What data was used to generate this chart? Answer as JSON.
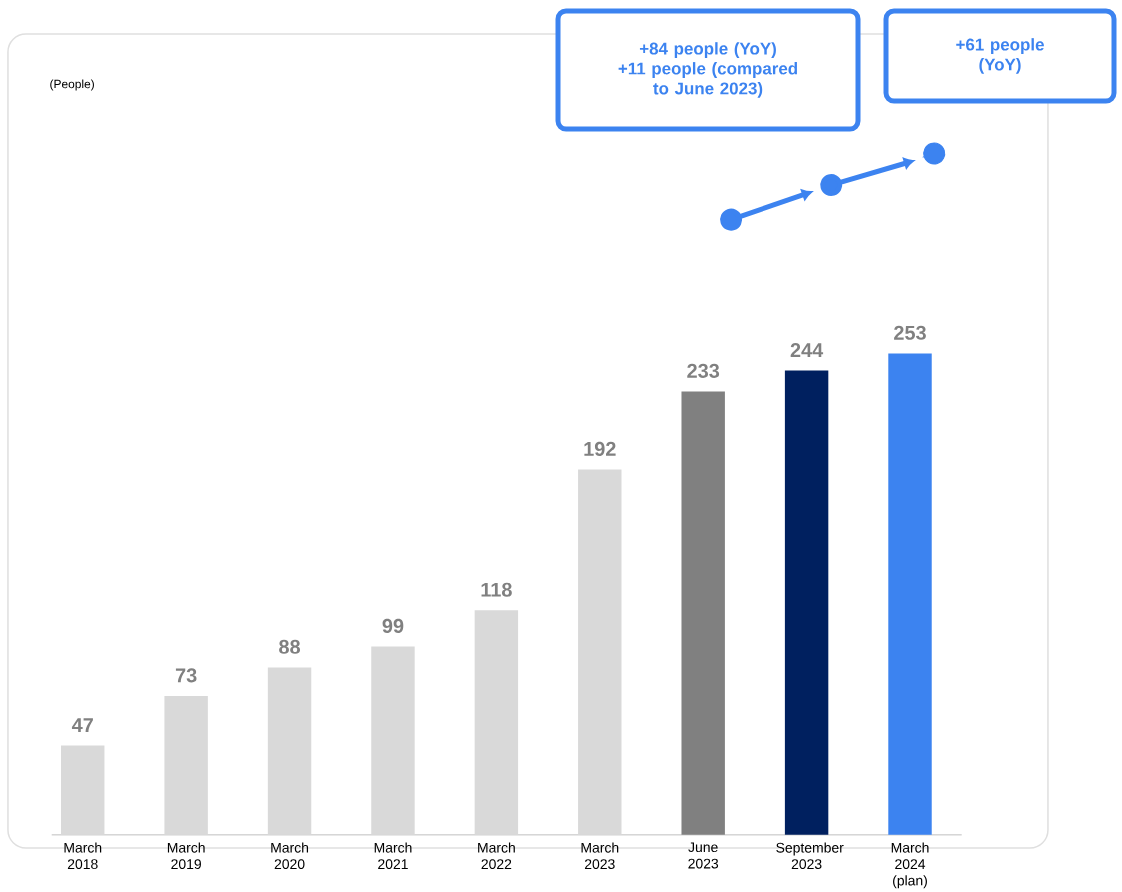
{
  "chart_data": {
    "type": "bar",
    "categories": [
      "March 2018",
      "March 2019",
      "March 2020",
      "March 2021",
      "March 2022",
      "March 2023",
      "June 2023",
      "September 2023",
      "March 2024 (plan)"
    ],
    "values": [
      47,
      73,
      88,
      99,
      118,
      192,
      233,
      244,
      253
    ],
    "colors": [
      "#d9d9d9",
      "#d9d9d9",
      "#d9d9d9",
      "#d9d9d9",
      "#d9d9d9",
      "#d9d9d9",
      "#808080",
      "#00205f",
      "#3c83f0"
    ],
    "data_labels": true,
    "annotations": [
      "(People)",
      "+84 people (YoY)",
      "+11 people (compared to June 2023)",
      "+61 people (YoY)"
    ]
  }
}
